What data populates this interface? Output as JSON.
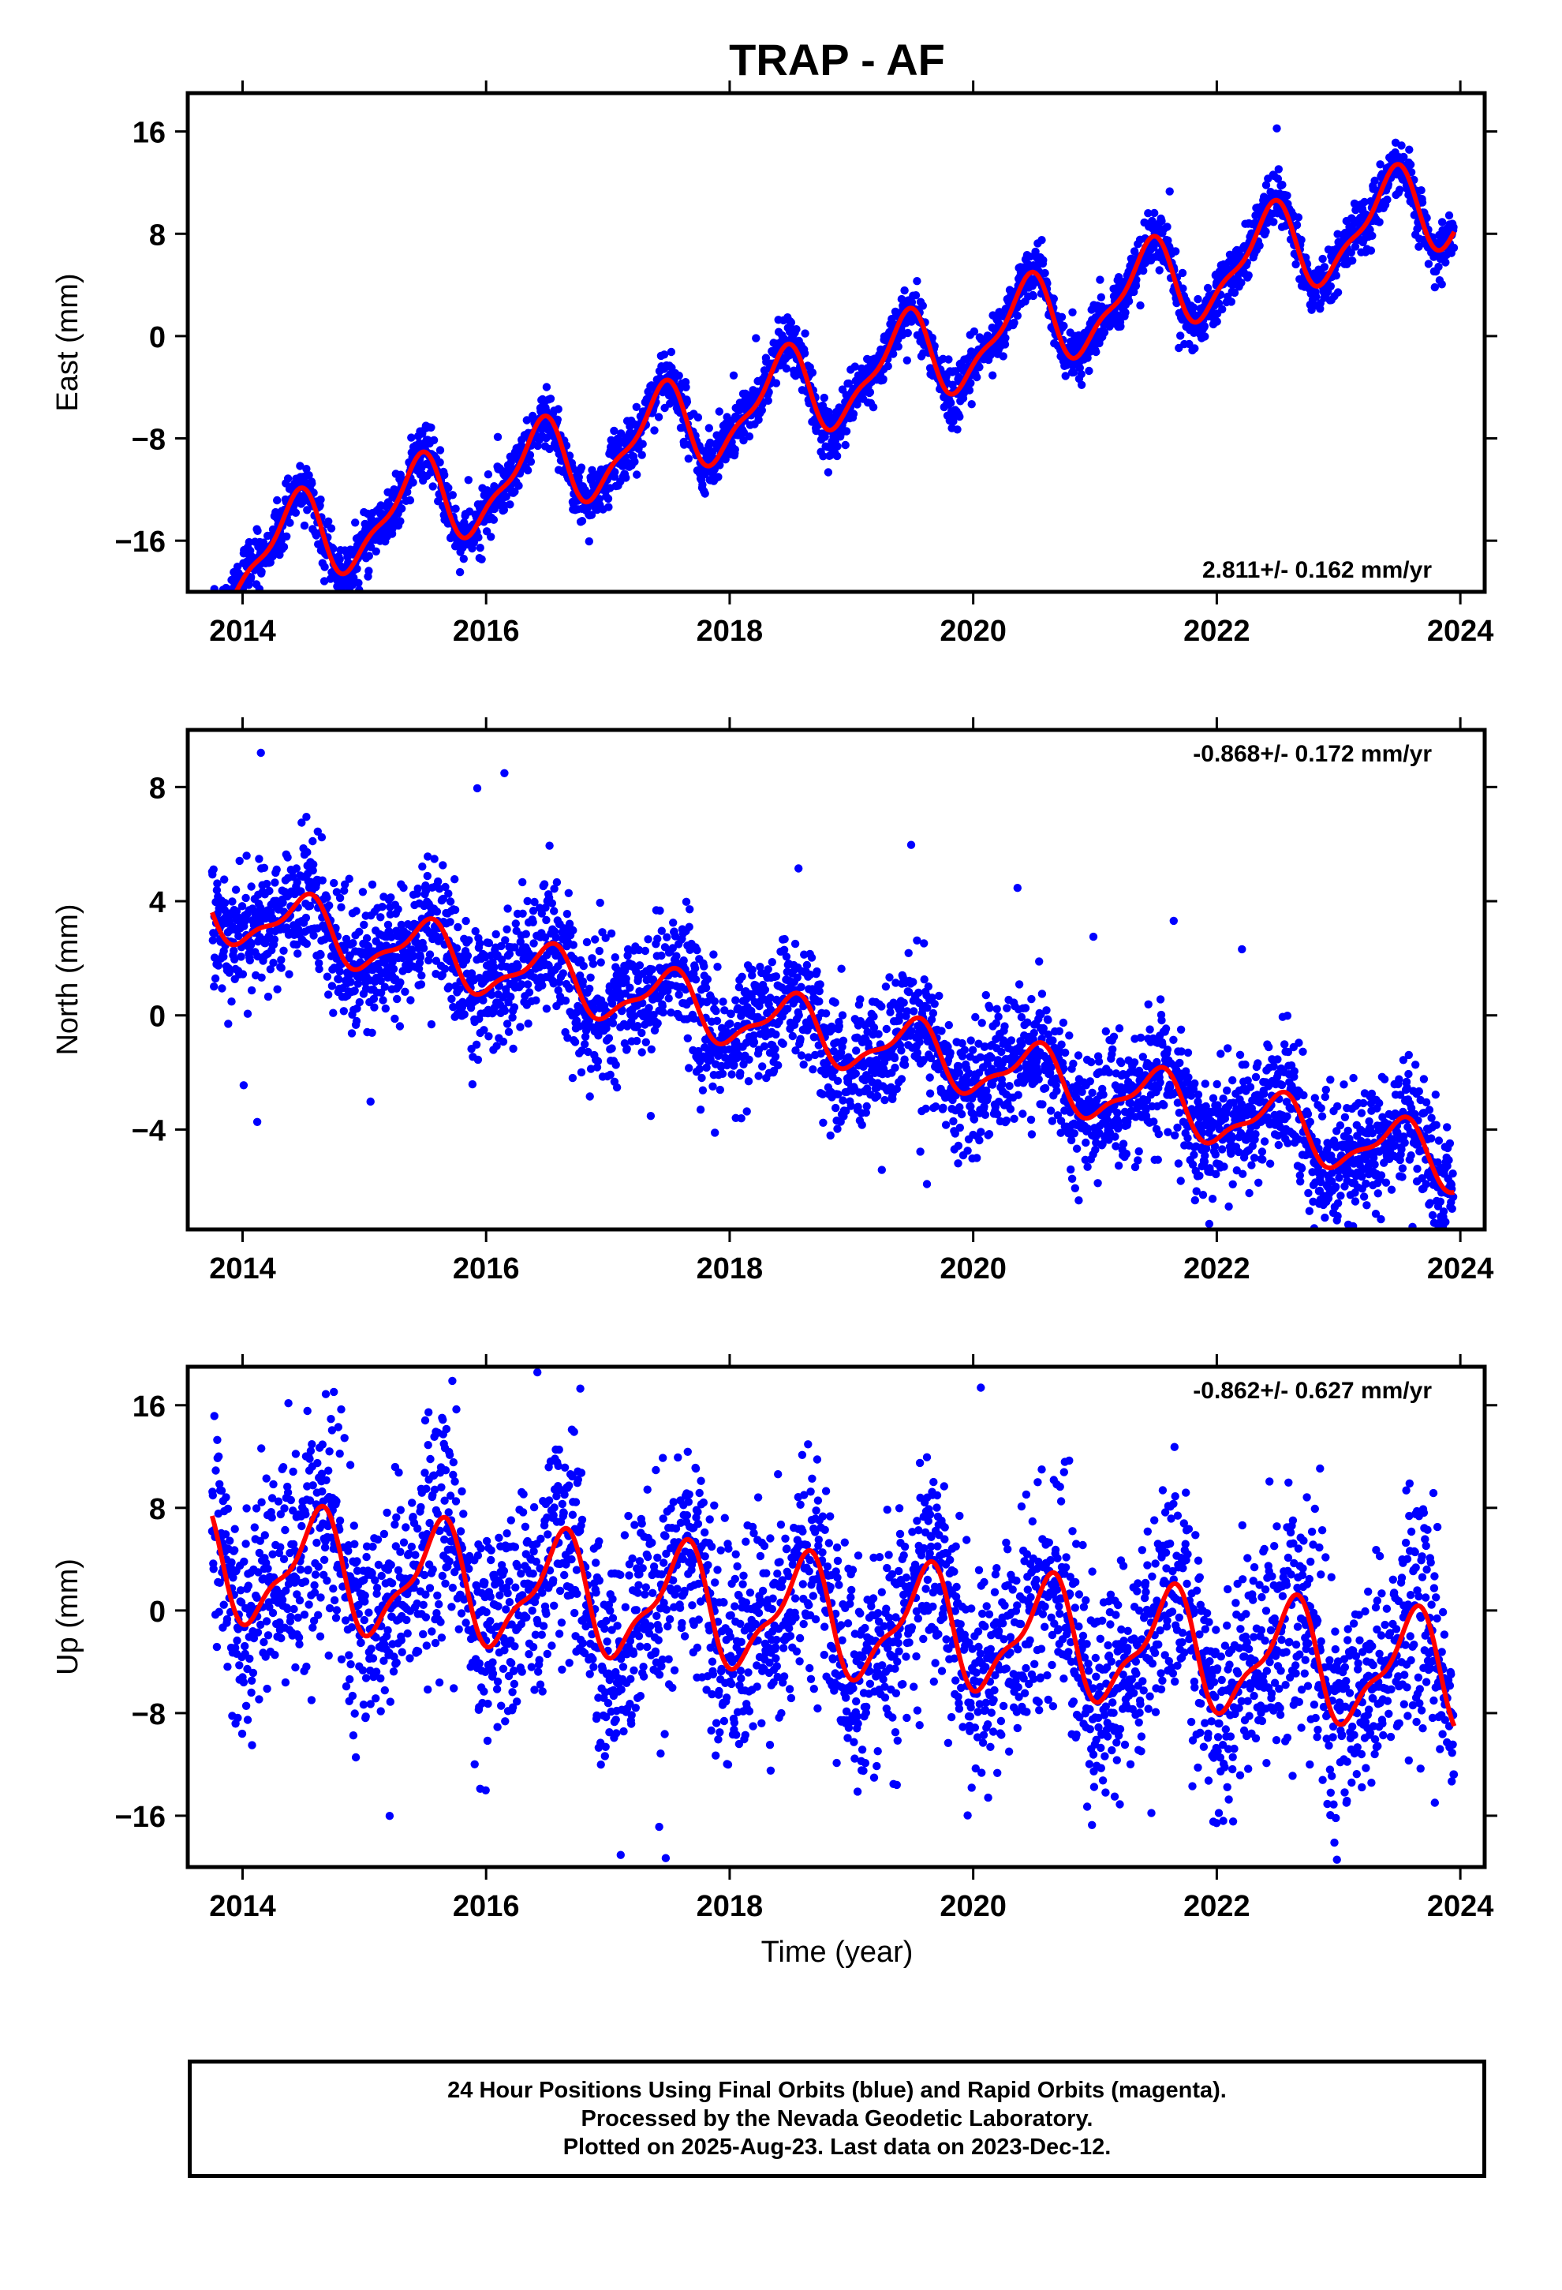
{
  "chart_data": {
    "type": "scatter",
    "title": "TRAP - AF",
    "xlabel": "Time (year)",
    "x_ticks": [
      2014,
      2016,
      2018,
      2020,
      2022,
      2024
    ],
    "xlim": [
      2013.55,
      2024.2
    ],
    "data_range": [
      2013.75,
      2023.95
    ],
    "series_colors": {
      "points": "#0000ff",
      "fit": "#ff0000"
    },
    "panels": [
      {
        "ylabel": "East (mm)",
        "ylim": [
          -20,
          19
        ],
        "y_ticks": [
          16,
          8,
          0,
          -8,
          -16
        ],
        "rate_label": "2.811+/- 0.162 mm/yr",
        "rate_position": "bottom-right",
        "trend": {
          "intercept_2014": -17.3,
          "slope_per_year": 2.811
        },
        "seasonal": {
          "amplitude": 3.3,
          "peak_phase_year": 0.42
        },
        "noise_mm": 1.0,
        "outlier_rate": 0.01
      },
      {
        "ylabel": "North (mm)",
        "ylim": [
          -7.5,
          10
        ],
        "y_ticks": [
          8,
          4,
          0,
          -4
        ],
        "rate_label": "-0.868+/- 0.172 mm/yr",
        "rate_position": "top-right",
        "trend": {
          "intercept_2014": 3.5,
          "slope_per_year": -0.868
        },
        "seasonal": {
          "amplitude": 1.0,
          "peak_phase_year": 0.5
        },
        "noise_mm": 1.1,
        "outlier_rate": 0.02
      },
      {
        "ylabel": "Up (mm)",
        "ylim": [
          -20,
          19
        ],
        "y_ticks": [
          16,
          8,
          0,
          -8,
          -16
        ],
        "rate_label": "-0.862+/- 0.627 mm/yr",
        "rate_position": "top-right",
        "trend": {
          "intercept_2014": 3.5,
          "slope_per_year": -0.862
        },
        "seasonal": {
          "amplitude": 4.2,
          "peak_phase_year": 0.6
        },
        "noise_mm": 4.2,
        "outlier_rate": 0.02
      }
    ]
  },
  "footer": {
    "line1": "24 Hour Positions Using Final Orbits (blue) and Rapid Orbits (magenta).",
    "line2": "Processed by the Nevada Geodetic Laboratory.",
    "line3": "Plotted on 2025-Aug-23. Last data on 2023-Dec-12."
  }
}
